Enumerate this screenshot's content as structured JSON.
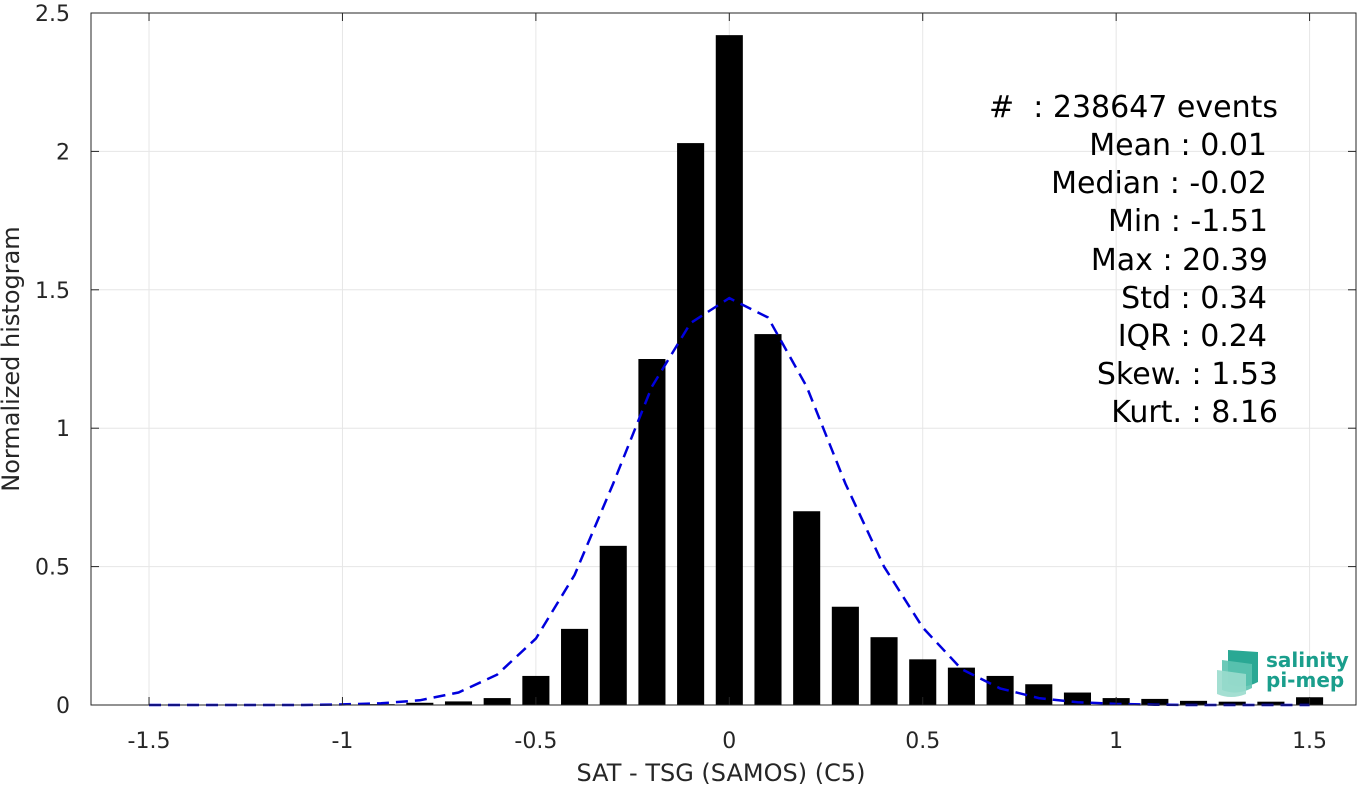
{
  "colors": {
    "bars": "#000000",
    "fit": "#0000dd",
    "grid": "#e6e6e6",
    "axis": "#262626",
    "logo": "#1a9e8c"
  },
  "chart_data": {
    "type": "bar",
    "title": "",
    "xlabel": "SAT - TSG (SAMOS) (C5)",
    "ylabel": "Normalized histogram",
    "xlim": [
      -1.65,
      1.62
    ],
    "ylim": [
      0,
      2.5
    ],
    "grid": true,
    "bar_width": 0.07,
    "x_ticks": [
      -1.5,
      -1,
      -0.5,
      0,
      0.5,
      1,
      1.5
    ],
    "x_tick_labels": [
      "-1.5",
      "-1",
      "-0.5",
      "0",
      "0.5",
      "1",
      "1.5"
    ],
    "y_ticks": [
      0,
      0.5,
      1,
      1.5,
      2,
      2.5
    ],
    "y_tick_labels": [
      "0",
      "0.5",
      "1",
      "1.5",
      "2",
      "2.5"
    ],
    "bars": {
      "x": [
        -1.5,
        -1.4,
        -1.3,
        -1.2,
        -1.1,
        -1.0,
        -0.9,
        -0.8,
        -0.7,
        -0.6,
        -0.5,
        -0.4,
        -0.3,
        -0.2,
        -0.1,
        0.0,
        0.1,
        0.2,
        0.3,
        0.4,
        0.5,
        0.6,
        0.7,
        0.8,
        0.9,
        1.0,
        1.1,
        1.2,
        1.3,
        1.4,
        1.5
      ],
      "values": [
        0,
        0,
        0,
        0,
        0,
        0.001,
        0.003,
        0.008,
        0.013,
        0.025,
        0.105,
        0.275,
        0.575,
        1.25,
        2.03,
        2.42,
        1.34,
        0.7,
        0.355,
        0.245,
        0.165,
        0.135,
        0.105,
        0.075,
        0.045,
        0.025,
        0.022,
        0.015,
        0.012,
        0.012,
        0.028
      ]
    },
    "fit_curve": {
      "name": "",
      "style": "dashed",
      "x": [
        -1.5,
        -1.4,
        -1.3,
        -1.2,
        -1.1,
        -1.0,
        -0.9,
        -0.8,
        -0.7,
        -0.6,
        -0.5,
        -0.4,
        -0.3,
        -0.2,
        -0.1,
        0.0,
        0.1,
        0.2,
        0.3,
        0.4,
        0.5,
        0.6,
        0.7,
        0.8,
        0.9,
        1.0,
        1.1,
        1.2,
        1.3,
        1.4,
        1.5
      ],
      "y": [
        0.0,
        0.0,
        0.0,
        0.0,
        0.0,
        0.002,
        0.006,
        0.017,
        0.045,
        0.11,
        0.24,
        0.47,
        0.8,
        1.15,
        1.38,
        1.47,
        1.4,
        1.15,
        0.8,
        0.5,
        0.28,
        0.13,
        0.06,
        0.025,
        0.01,
        0.004,
        0.001,
        0.0,
        0.0,
        0.0,
        0.0
      ]
    }
  },
  "stats_lines": [
    "#  : 238647 events",
    "Mean : 0.01",
    "Median : -0.02",
    "Min : -1.51",
    "Max : 20.39",
    "Std : 0.34",
    "IQR : 0.24",
    "Skew. : 1.53",
    "Kurt. : 8.16"
  ],
  "logo": {
    "line1": "salinity",
    "line2": "pi-mep"
  }
}
